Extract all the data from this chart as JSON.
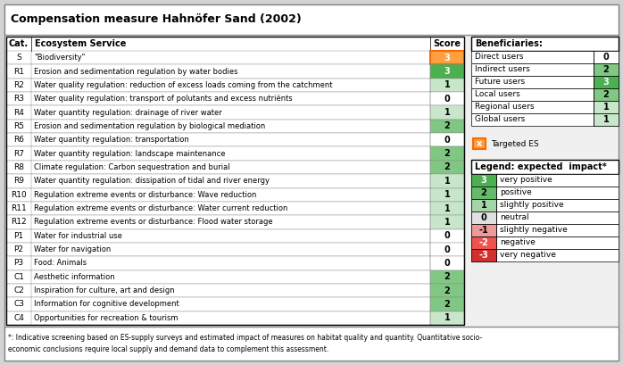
{
  "title": "Compensation measure Hahnöfer Sand (2002)",
  "main_table": {
    "headers": [
      "Cat.",
      "Ecosystem Service",
      "Score"
    ],
    "rows": [
      [
        "S",
        "\"Biodiversity\"",
        3,
        "targeted"
      ],
      [
        "R1",
        "Erosion and sedimentation regulation by water bodies",
        3,
        "green"
      ],
      [
        "R2",
        "Water quality regulation: reduction of excess loads coming from the catchment",
        1,
        "green"
      ],
      [
        "R3",
        "Water quality regulation: transport of polutants and excess nutriënts",
        0,
        "white"
      ],
      [
        "R4",
        "Water quantity regulation: drainage of river water",
        1,
        "green"
      ],
      [
        "R5",
        "Erosion and sedimentation regulation by biological mediation",
        2,
        "green"
      ],
      [
        "R6",
        "Water quantity regulation: transportation",
        0,
        "white"
      ],
      [
        "R7",
        "Water quantity regulation: landscape maintenance",
        2,
        "green"
      ],
      [
        "R8",
        "Climate regulation: Carbon sequestration and burial",
        2,
        "green"
      ],
      [
        "R9",
        "Water quantity regulation: dissipation of tidal and river energy",
        1,
        "green"
      ],
      [
        "R10",
        "Regulation extreme events or disturbance: Wave reduction",
        1,
        "green"
      ],
      [
        "R11",
        "Regulation extreme events or disturbance: Water current reduction",
        1,
        "green"
      ],
      [
        "R12",
        "Regulation extreme events or disturbance: Flood water storage",
        1,
        "green"
      ],
      [
        "P1",
        "Water for industrial use",
        0,
        "white"
      ],
      [
        "P2",
        "Water for navigation",
        0,
        "white"
      ],
      [
        "P3",
        "Food: Animals",
        0,
        "white"
      ],
      [
        "C1",
        "Aesthetic information",
        2,
        "green"
      ],
      [
        "C2",
        "Inspiration for culture, art and design",
        2,
        "green"
      ],
      [
        "C3",
        "Information for cognitive development",
        2,
        "green"
      ],
      [
        "C4",
        "Opportunities for recreation & tourism",
        1,
        "green"
      ]
    ]
  },
  "beneficiaries_table": {
    "header": "Beneficiaries:",
    "rows": [
      [
        "Direct users",
        0,
        "white"
      ],
      [
        "Indirect users",
        2,
        "green"
      ],
      [
        "Future users",
        3,
        "green_dark"
      ],
      [
        "Local users",
        2,
        "green"
      ],
      [
        "Regional users",
        1,
        "green"
      ],
      [
        "Global users",
        1,
        "green"
      ]
    ]
  },
  "legend_table": {
    "header": "Legend: expected  impact*",
    "rows": [
      [
        3,
        "very positive",
        "#4CAF50"
      ],
      [
        2,
        "positive",
        "#66BB6A"
      ],
      [
        1,
        "slightly positive",
        "#A5D6A7"
      ],
      [
        0,
        "neutral",
        "#E0E0E0"
      ],
      [
        -1,
        "slightly negative",
        "#EF9A9A"
      ],
      [
        -2,
        "negative",
        "#EF5350"
      ],
      [
        -3,
        "very negative",
        "#D32F2F"
      ]
    ]
  },
  "footnote": "*: Indicative screening based on ES-supply surveys and estimated impact of measures on habitat quality and quantity. Quantitative socio-\neconomic conclusions require local supply and demand data to complement this assessment.",
  "colors": {
    "green_3": "#4CAF50",
    "green_2": "#81C784",
    "green_1": "#C8E6C9",
    "white": "#FFFFFF",
    "targeted_fill": "#FFA040",
    "targeted_border": "#FF6600",
    "neg1": "#EF9A9A",
    "neg2": "#EF5350",
    "neg3": "#D32F2F"
  }
}
